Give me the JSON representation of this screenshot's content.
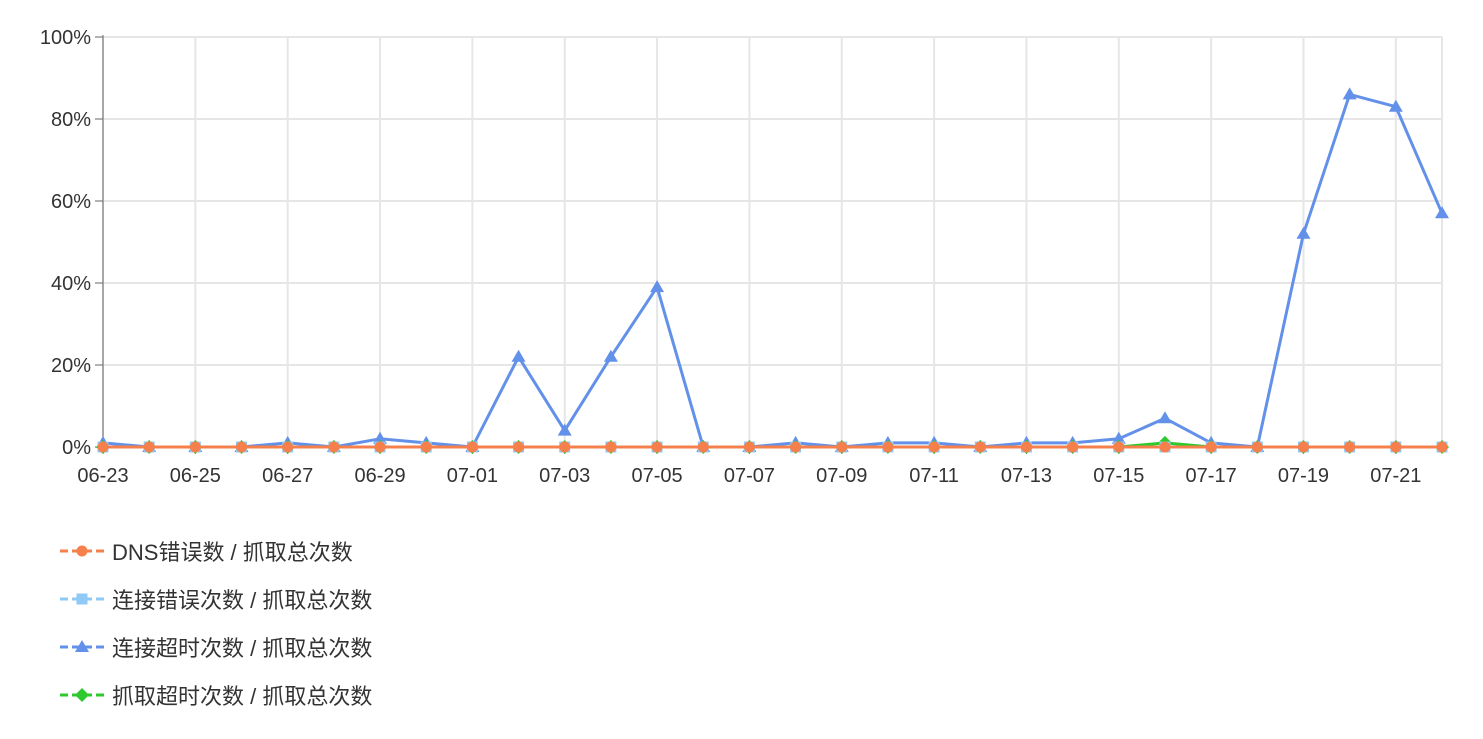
{
  "chart_data": {
    "type": "line",
    "x": [
      "06-23",
      "06-24",
      "06-25",
      "06-26",
      "06-27",
      "06-28",
      "06-29",
      "06-30",
      "07-01",
      "07-02",
      "07-03",
      "07-04",
      "07-05",
      "07-06",
      "07-07",
      "07-08",
      "07-09",
      "07-10",
      "07-11",
      "07-12",
      "07-13",
      "07-14",
      "07-15",
      "07-16",
      "07-17",
      "07-18",
      "07-19",
      "07-20",
      "07-21",
      "07-22"
    ],
    "x_tick_labels": [
      "06-23",
      "06-25",
      "06-27",
      "06-29",
      "07-01",
      "07-03",
      "07-05",
      "07-07",
      "07-09",
      "07-11",
      "07-13",
      "07-15",
      "07-17",
      "07-19",
      "07-21"
    ],
    "y_ticks": [
      "0%",
      "20%",
      "40%",
      "60%",
      "80%",
      "100%"
    ],
    "ylim": [
      0,
      100
    ],
    "y_unit": "%",
    "grid": true,
    "legend_position": "bottom-left",
    "series": [
      {
        "name": "DNS错误数 / 抓取总次数",
        "color": "#f5804b",
        "marker": "circle",
        "values": [
          0,
          0,
          0,
          0,
          0,
          0,
          0,
          0,
          0,
          0,
          0,
          0,
          0,
          0,
          0,
          0,
          0,
          0,
          0,
          0,
          0,
          0,
          0,
          0,
          0,
          0,
          0,
          0,
          0,
          0
        ]
      },
      {
        "name": "连接错误次数 / 抓取总次数",
        "color": "#8ecaf5",
        "marker": "square",
        "values": [
          0,
          0,
          0,
          0,
          0,
          0,
          0,
          0,
          0,
          0,
          0,
          0,
          0,
          0,
          0,
          0,
          0,
          0,
          0,
          0,
          0,
          0,
          0,
          0,
          0,
          0,
          0,
          0,
          0,
          0
        ]
      },
      {
        "name": "连接超时次数 / 抓取总次数",
        "color": "#6391ea",
        "marker": "triangle",
        "values": [
          1,
          0,
          0,
          0,
          1,
          0,
          2,
          1,
          0,
          22,
          4,
          22,
          39,
          0,
          0,
          1,
          0,
          1,
          1,
          0,
          1,
          1,
          2,
          7,
          1,
          0,
          52,
          86,
          83,
          57
        ]
      },
      {
        "name": "抓取超时次数 / 抓取总次数",
        "color": "#2ec92c",
        "marker": "diamond",
        "values": [
          0,
          0,
          0,
          0,
          0,
          0,
          0,
          0,
          0,
          0,
          0,
          0,
          0,
          0,
          0,
          0,
          0,
          0,
          0,
          0,
          0,
          0,
          0,
          1,
          0,
          0,
          0,
          0,
          0,
          0
        ]
      }
    ]
  }
}
